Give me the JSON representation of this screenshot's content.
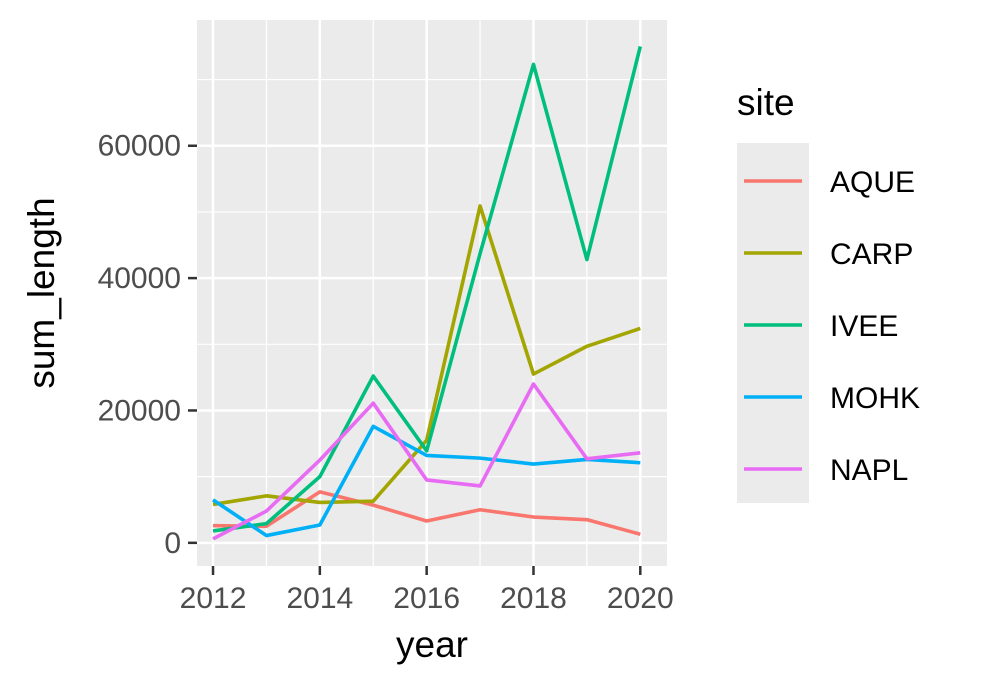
{
  "chart_data": {
    "type": "line",
    "title": "",
    "xlabel": "year",
    "ylabel": "sum_length",
    "x": [
      2012,
      2013,
      2014,
      2015,
      2016,
      2017,
      2018,
      2019,
      2020
    ],
    "xlim": [
      2011.7,
      2020.5
    ],
    "ylim": [
      -3500,
      79000
    ],
    "x_ticks": [
      2012,
      2014,
      2016,
      2018,
      2020
    ],
    "y_ticks": [
      0,
      20000,
      40000,
      60000
    ],
    "x_tick_labels": [
      "2012",
      "2014",
      "2016",
      "2018",
      "2020"
    ],
    "y_tick_labels": [
      "0",
      "20000",
      "40000",
      "60000"
    ],
    "grid": true,
    "legend": {
      "title": "site",
      "position": "right"
    },
    "series": [
      {
        "name": "AQUE",
        "color": "#F8766D",
        "values": [
          2600,
          2500,
          7700,
          5700,
          3300,
          5000,
          3900,
          3500,
          1300
        ]
      },
      {
        "name": "CARP",
        "color": "#A3A500",
        "values": [
          5800,
          7100,
          6100,
          6300,
          15500,
          50900,
          25500,
          29700,
          32400
        ]
      },
      {
        "name": "IVEE",
        "color": "#00BF7D",
        "values": [
          1800,
          2900,
          10000,
          25200,
          13900,
          43700,
          72300,
          42800,
          75000
        ]
      },
      {
        "name": "MOHK",
        "color": "#00B0F6",
        "values": [
          6500,
          1100,
          2700,
          17600,
          13200,
          12800,
          11900,
          12600,
          12100
        ]
      },
      {
        "name": "NAPL",
        "color": "#E76BF3",
        "values": [
          600,
          4800,
          12500,
          21100,
          9500,
          8600,
          24000,
          12700,
          13600
        ]
      }
    ]
  }
}
